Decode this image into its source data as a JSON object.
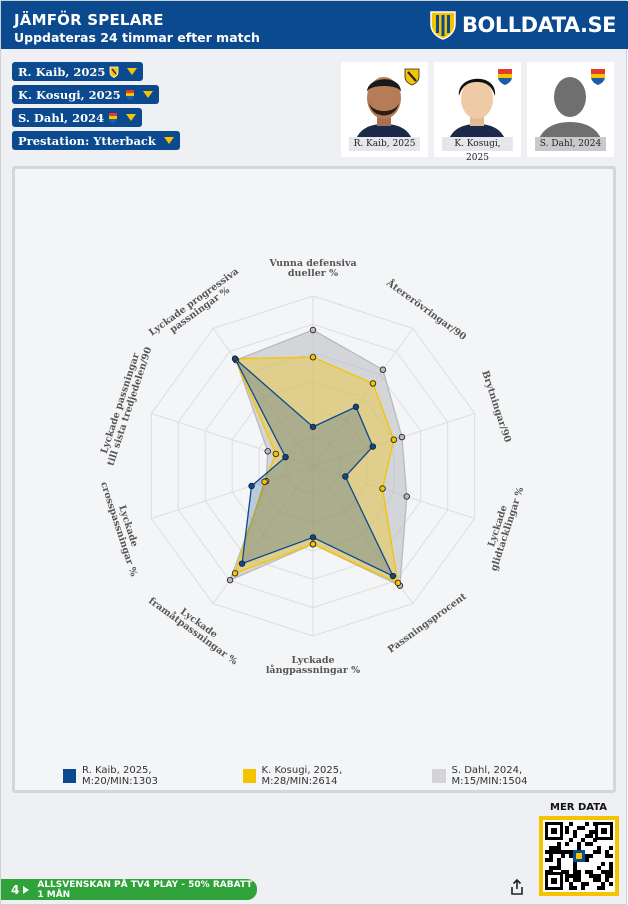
{
  "header": {
    "title": "JÄMFÖR SPELARE",
    "subtitle": "Uppdateras 24 timmar efter match",
    "brand": "BOLLDATA.SE"
  },
  "selectors": [
    {
      "label": "R. Kaib, 2025",
      "badge": "hacken-badge"
    },
    {
      "label": "K. Kosugi, 2025",
      "badge": "djurgarden-badge"
    },
    {
      "label": "S. Dahl, 2024",
      "badge": "djurgarden-badge"
    },
    {
      "label": "Prestation: Ytterback",
      "badge": ""
    }
  ],
  "cards": [
    {
      "caption": "R. Kaib, 2025",
      "border": "#0b4a8f",
      "badge": "hacken-badge"
    },
    {
      "caption": "K. Kosugi, 2025",
      "border": "#f5c400",
      "badge": "djurgarden-badge"
    },
    {
      "caption": "S. Dahl, 2024",
      "border": "#e3e3e3",
      "badge": "djurgarden-badge"
    }
  ],
  "chart_data": {
    "type": "radar",
    "range": [
      0,
      100
    ],
    "axes": [
      "Vunna defensiva dueller %",
      "Återerövringar/90",
      "Brytningar/90",
      "Lyckade glidtacklingar %",
      "Passningsprocent",
      "Lyckade långpassningar %",
      "Lyckade framåtpassningar %",
      "Lyckade crosspassningar %",
      "Lyckade passningar till sista tredjedelen/90",
      "Lyckade progressiva passningar %"
    ],
    "axis_label_lines": [
      [
        "Vunna defensiva",
        "dueller %"
      ],
      [
        "Återerövringar/90"
      ],
      [
        "Brytningar/90"
      ],
      [
        "Lyckade",
        "glidtacklingar %"
      ],
      [
        "Passningsprocent"
      ],
      [
        "Lyckade",
        "långpassningar %"
      ],
      [
        "Lyckade",
        "framåtpassningar %"
      ],
      [
        "Lyckade",
        "crosspassningar %"
      ],
      [
        "Lyckade passningar",
        "till sista tredjedelen/90"
      ],
      [
        "Lyckade progressiva",
        "passningar %"
      ]
    ],
    "series": [
      {
        "name": "S. Dahl, 2024, M:15/MIN:1504",
        "color": "#b9b9bf",
        "values": [
          80,
          70,
          55,
          58,
          87,
          46,
          83,
          29,
          28,
          77
        ]
      },
      {
        "name": "K. Kosugi, 2025, M:28/MIN:2614",
        "color": "#f5c400",
        "values": [
          64,
          60,
          50,
          43,
          85,
          46,
          78,
          30,
          23,
          78
        ]
      },
      {
        "name": "R. Kaib, 2025, M:20/MIN:1303",
        "color": "#0b4a8f",
        "values": [
          23,
          43,
          37,
          20,
          80,
          42,
          71,
          38,
          17,
          78
        ]
      }
    ],
    "grid_rings": 6
  },
  "legend": [
    {
      "label": "R. Kaib, 2025, M:20/MIN:1303",
      "color": "#0b4a8f"
    },
    {
      "label": "K. Kosugi, 2025, M:28/MIN:2614",
      "color": "#f5c400"
    },
    {
      "label": "S. Dahl, 2024, M:15/MIN:1504",
      "color": "#d4d4d8"
    }
  ],
  "footer": {
    "mer_data": "MER DATA",
    "promo_number": "4",
    "promo": "ALLSVENSKAN PÅ TV4 PLAY - 50% RABATT 1 MÅN"
  }
}
